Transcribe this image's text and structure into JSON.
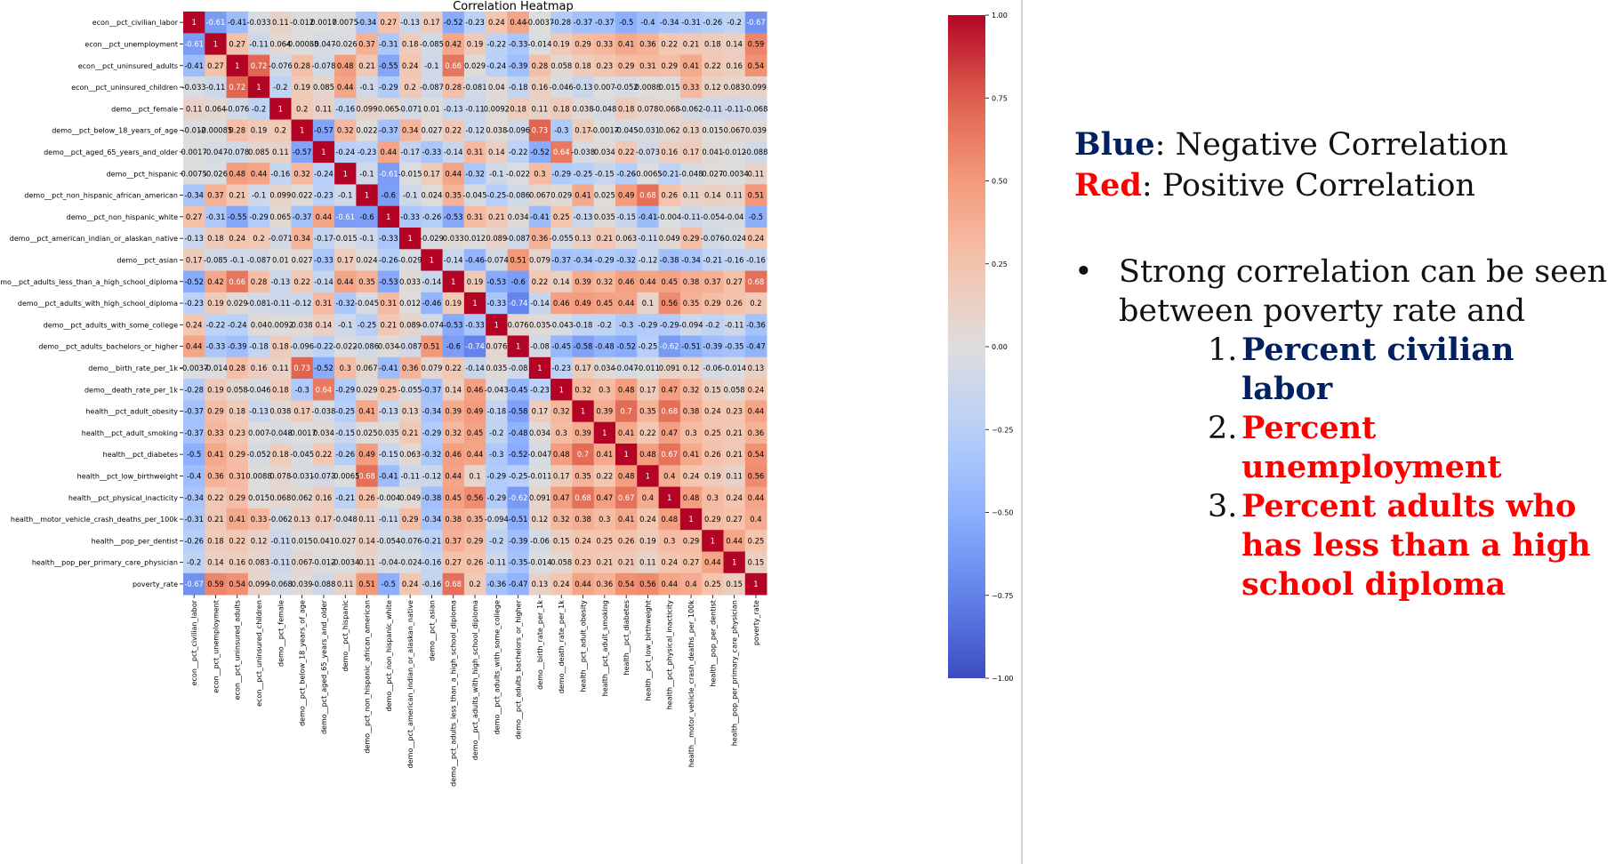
{
  "colors": {
    "negative": "#3b4cc0",
    "neutral": "#dddddd",
    "positive": "#b40426",
    "legend_blue": "#002060",
    "legend_red": "#ff0000"
  },
  "notes": {
    "blue_key": "Blue",
    "blue_text": ": Negative Correlation",
    "red_key": "Red",
    "red_text": ": Positive Correlation",
    "bullet": "•",
    "intro": "Strong correlation can be seen between poverty rate and",
    "items": [
      {
        "num": "1.",
        "text": "Percent civilian labor",
        "color": "#002060"
      },
      {
        "num": "2.",
        "text": "Percent unemployment",
        "color": "#ff0000"
      },
      {
        "num": "3.",
        "text": "Percent adults who has less  than a high school diploma",
        "color": "#ff0000"
      }
    ]
  },
  "chart_data": {
    "type": "heatmap",
    "title": "Correlation Heatmap",
    "colormap": "coolwarm",
    "vmin": -1,
    "vmax": 1,
    "colorbar_ticks": [
      "1.00",
      "0.75",
      "0.50",
      "0.25",
      "0.00",
      "−0.25",
      "−0.50",
      "−0.75",
      "−1.00"
    ],
    "labels": [
      "econ__pct_civilian_labor",
      "econ__pct_unemployment",
      "econ__pct_uninsured_adults",
      "econ__pct_uninsured_children",
      "demo__pct_female",
      "demo__pct_below_18_years_of_age",
      "demo__pct_aged_65_years_and_older",
      "demo__pct_hispanic",
      "demo__pct_non_hispanic_african_american",
      "demo__pct_non_hispanic_white",
      "demo__pct_american_indian_or_alaskan_native",
      "demo__pct_asian",
      "demo__pct_adults_less_than_a_high_school_diploma",
      "demo__pct_adults_with_high_school_diploma",
      "demo__pct_adults_with_some_college",
      "demo__pct_adults_bachelors_or_higher",
      "demo__birth_rate_per_1k",
      "demo__death_rate_per_1k",
      "health__pct_adult_obesity",
      "health__pct_adult_smoking",
      "health__pct_diabetes",
      "health__pct_low_birthweight",
      "health__pct_physical_inacticity",
      "health__motor_vehicle_crash_deaths_per_100k",
      "health__pop_per_dentist",
      "health__pop_per_primary_care_physician",
      "poverty_rate"
    ],
    "values": [
      [
        1,
        -0.61,
        -0.41,
        -0.033,
        0.11,
        -0.012,
        0.0017,
        0.0075,
        -0.34,
        0.27,
        -0.13,
        0.17,
        -0.52,
        -0.23,
        0.24,
        0.44,
        -0.0037,
        -0.28,
        -0.37,
        -0.37,
        -0.5,
        -0.4,
        -0.34,
        -0.31,
        -0.26,
        -0.2,
        -0.67
      ],
      [
        -0.61,
        1,
        0.27,
        -0.11,
        0.064,
        -0.00085,
        -0.047,
        -0.026,
        0.37,
        -0.31,
        0.18,
        -0.085,
        0.42,
        0.19,
        -0.22,
        -0.33,
        -0.014,
        0.19,
        0.29,
        0.33,
        0.41,
        0.36,
        0.22,
        0.21,
        0.18,
        0.14,
        0.59
      ],
      [
        -0.41,
        0.27,
        1,
        0.72,
        -0.076,
        0.28,
        -0.078,
        0.48,
        0.21,
        -0.55,
        0.24,
        -0.1,
        0.66,
        0.029,
        -0.24,
        -0.39,
        0.28,
        0.058,
        0.18,
        0.23,
        0.29,
        0.31,
        0.29,
        0.41,
        0.22,
        0.16,
        0.54
      ],
      [
        -0.033,
        -0.11,
        0.72,
        1,
        -0.2,
        0.19,
        0.085,
        0.44,
        -0.1,
        -0.29,
        0.2,
        -0.087,
        0.28,
        -0.081,
        0.04,
        -0.18,
        0.16,
        -0.046,
        -0.13,
        0.007,
        -0.052,
        0.0088,
        0.015,
        0.33,
        0.12,
        0.083,
        0.099
      ],
      [
        0.11,
        0.064,
        -0.076,
        -0.2,
        1,
        0.2,
        0.11,
        -0.16,
        0.099,
        0.065,
        -0.071,
        0.01,
        -0.13,
        -0.11,
        0.0092,
        0.18,
        0.11,
        0.18,
        0.038,
        -0.048,
        0.18,
        0.078,
        0.068,
        -0.062,
        -0.11,
        -0.11,
        -0.068
      ],
      [
        -0.012,
        -0.00085,
        0.28,
        0.19,
        0.2,
        1,
        -0.57,
        0.32,
        0.022,
        -0.37,
        0.34,
        0.027,
        0.22,
        -0.12,
        0.038,
        -0.096,
        0.73,
        -0.3,
        0.17,
        -0.0017,
        -0.045,
        -0.031,
        0.062,
        0.13,
        0.015,
        0.067,
        0.039
      ],
      [
        0.0017,
        -0.047,
        -0.078,
        0.085,
        0.11,
        -0.57,
        1,
        -0.24,
        -0.23,
        0.44,
        -0.17,
        -0.33,
        -0.14,
        0.31,
        0.14,
        -0.22,
        -0.52,
        0.64,
        -0.038,
        0.034,
        0.22,
        -0.073,
        0.16,
        0.17,
        0.041,
        -0.012,
        -0.088
      ],
      [
        0.0075,
        -0.026,
        0.48,
        0.44,
        -0.16,
        0.32,
        -0.24,
        1,
        -0.1,
        -0.61,
        -0.015,
        0.17,
        0.44,
        -0.32,
        -0.1,
        -0.022,
        0.3,
        -0.29,
        -0.25,
        -0.15,
        -0.26,
        -0.0065,
        -0.21,
        -0.048,
        0.027,
        -0.0034,
        0.11
      ],
      [
        -0.34,
        0.37,
        0.21,
        -0.1,
        0.099,
        0.022,
        -0.23,
        -0.1,
        1,
        -0.6,
        -0.1,
        0.024,
        0.35,
        -0.045,
        -0.25,
        -0.086,
        0.067,
        0.029,
        0.41,
        0.025,
        0.49,
        0.68,
        0.26,
        0.11,
        0.14,
        0.11,
        0.51
      ],
      [
        0.27,
        -0.31,
        -0.55,
        -0.29,
        0.065,
        -0.37,
        0.44,
        -0.61,
        -0.6,
        1,
        -0.33,
        -0.26,
        -0.53,
        0.31,
        0.21,
        0.034,
        -0.41,
        0.25,
        -0.13,
        0.035,
        -0.15,
        -0.41,
        -0.004,
        -0.11,
        -0.054,
        -0.04,
        -0.5
      ],
      [
        -0.13,
        0.18,
        0.24,
        0.2,
        -0.071,
        0.34,
        -0.17,
        -0.015,
        -0.1,
        -0.33,
        1,
        -0.029,
        0.033,
        0.012,
        0.089,
        -0.087,
        0.36,
        -0.055,
        0.13,
        0.21,
        0.063,
        -0.11,
        0.049,
        0.29,
        -0.076,
        -0.024,
        0.24
      ],
      [
        0.17,
        -0.085,
        -0.1,
        -0.087,
        0.01,
        0.027,
        -0.33,
        0.17,
        0.024,
        -0.26,
        -0.029,
        1,
        -0.14,
        -0.46,
        -0.074,
        0.51,
        0.079,
        -0.37,
        -0.34,
        -0.29,
        -0.32,
        -0.12,
        -0.38,
        -0.34,
        -0.21,
        -0.16,
        -0.16
      ],
      [
        -0.52,
        0.42,
        0.66,
        0.28,
        -0.13,
        0.22,
        -0.14,
        0.44,
        0.35,
        -0.53,
        0.033,
        -0.14,
        1,
        0.19,
        -0.53,
        -0.6,
        0.22,
        0.14,
        0.39,
        0.32,
        0.46,
        0.44,
        0.45,
        0.38,
        0.37,
        0.27,
        0.68
      ],
      [
        -0.23,
        0.19,
        0.029,
        -0.081,
        -0.11,
        -0.12,
        0.31,
        -0.32,
        -0.045,
        0.31,
        0.012,
        -0.46,
        0.19,
        1,
        -0.33,
        -0.74,
        -0.14,
        0.46,
        0.49,
        0.45,
        0.44,
        0.1,
        0.56,
        0.35,
        0.29,
        0.26,
        0.2
      ],
      [
        0.24,
        -0.22,
        -0.24,
        0.04,
        0.0092,
        0.038,
        0.14,
        -0.1,
        -0.25,
        0.21,
        0.089,
        -0.074,
        -0.53,
        -0.33,
        1,
        0.076,
        0.035,
        -0.043,
        -0.18,
        -0.2,
        -0.3,
        -0.29,
        -0.29,
        -0.094,
        -0.2,
        -0.11,
        -0.36
      ],
      [
        0.44,
        -0.33,
        -0.39,
        -0.18,
        0.18,
        -0.096,
        -0.22,
        -0.022,
        -0.086,
        0.034,
        -0.087,
        0.51,
        -0.6,
        -0.74,
        0.076,
        1,
        -0.08,
        -0.45,
        -0.58,
        -0.48,
        -0.52,
        -0.25,
        -0.62,
        -0.51,
        -0.39,
        -0.35,
        -0.47
      ],
      [
        -0.0037,
        -0.014,
        0.28,
        0.16,
        0.11,
        0.73,
        -0.52,
        0.3,
        0.067,
        -0.41,
        0.36,
        0.079,
        0.22,
        -0.14,
        0.035,
        -0.08,
        1,
        -0.23,
        0.17,
        0.034,
        -0.047,
        -0.011,
        0.091,
        0.12,
        -0.06,
        -0.014,
        0.13
      ],
      [
        -0.28,
        0.19,
        0.058,
        -0.046,
        0.18,
        -0.3,
        0.64,
        -0.29,
        0.029,
        0.25,
        -0.055,
        -0.37,
        0.14,
        0.46,
        -0.043,
        -0.45,
        -0.23,
        1,
        0.32,
        0.3,
        0.48,
        0.17,
        0.47,
        0.32,
        0.15,
        0.058,
        0.24
      ],
      [
        -0.37,
        0.29,
        0.18,
        -0.13,
        0.038,
        0.17,
        -0.038,
        -0.25,
        0.41,
        -0.13,
        0.13,
        -0.34,
        0.39,
        0.49,
        -0.18,
        -0.58,
        0.17,
        0.32,
        1,
        0.39,
        0.7,
        0.35,
        0.68,
        0.38,
        0.24,
        0.23,
        0.44
      ],
      [
        -0.37,
        0.33,
        0.23,
        0.007,
        -0.048,
        -0.0017,
        0.034,
        -0.15,
        0.025,
        0.035,
        0.21,
        -0.29,
        0.32,
        0.45,
        -0.2,
        -0.48,
        0.034,
        0.3,
        0.39,
        1,
        0.41,
        0.22,
        0.47,
        0.3,
        0.25,
        0.21,
        0.36
      ],
      [
        -0.5,
        0.41,
        0.29,
        -0.052,
        0.18,
        -0.045,
        0.22,
        -0.26,
        0.49,
        -0.15,
        0.063,
        -0.32,
        0.46,
        0.44,
        -0.3,
        -0.52,
        -0.047,
        0.48,
        0.7,
        0.41,
        1,
        0.48,
        0.67,
        0.41,
        0.26,
        0.21,
        0.54
      ],
      [
        -0.4,
        0.36,
        0.31,
        0.0088,
        0.078,
        -0.031,
        -0.073,
        -0.0065,
        0.68,
        -0.41,
        -0.11,
        -0.12,
        0.44,
        0.1,
        -0.29,
        -0.25,
        -0.011,
        0.17,
        0.35,
        0.22,
        0.48,
        1,
        0.4,
        0.24,
        0.19,
        0.11,
        0.56
      ],
      [
        -0.34,
        0.22,
        0.29,
        0.015,
        0.068,
        0.062,
        0.16,
        -0.21,
        0.26,
        -0.004,
        0.049,
        -0.38,
        0.45,
        0.56,
        -0.29,
        -0.62,
        0.091,
        0.47,
        0.68,
        0.47,
        0.67,
        0.4,
        1,
        0.48,
        0.3,
        0.24,
        0.44
      ],
      [
        -0.31,
        0.21,
        0.41,
        0.33,
        -0.062,
        0.13,
        0.17,
        -0.048,
        0.11,
        -0.11,
        0.29,
        -0.34,
        0.38,
        0.35,
        -0.094,
        -0.51,
        0.12,
        0.32,
        0.38,
        0.3,
        0.41,
        0.24,
        0.48,
        1,
        0.29,
        0.27,
        0.4
      ],
      [
        -0.26,
        0.18,
        0.22,
        0.12,
        -0.11,
        0.015,
        0.041,
        0.027,
        0.14,
        -0.054,
        -0.076,
        -0.21,
        0.37,
        0.29,
        -0.2,
        -0.39,
        -0.06,
        0.15,
        0.24,
        0.25,
        0.26,
        0.19,
        0.3,
        0.29,
        1,
        0.44,
        0.25
      ],
      [
        -0.2,
        0.14,
        0.16,
        0.083,
        -0.11,
        0.067,
        -0.012,
        -0.0034,
        0.11,
        -0.04,
        -0.024,
        -0.16,
        0.27,
        0.26,
        -0.11,
        -0.35,
        -0.014,
        0.058,
        0.23,
        0.21,
        0.21,
        0.11,
        0.24,
        0.27,
        0.44,
        1,
        0.15
      ],
      [
        -0.67,
        0.59,
        0.54,
        0.099,
        -0.068,
        0.039,
        -0.088,
        0.11,
        0.51,
        -0.5,
        0.24,
        -0.16,
        0.68,
        0.2,
        -0.36,
        -0.47,
        0.13,
        0.24,
        0.44,
        0.36,
        0.54,
        0.56,
        0.44,
        0.4,
        0.25,
        0.15,
        1
      ]
    ]
  }
}
